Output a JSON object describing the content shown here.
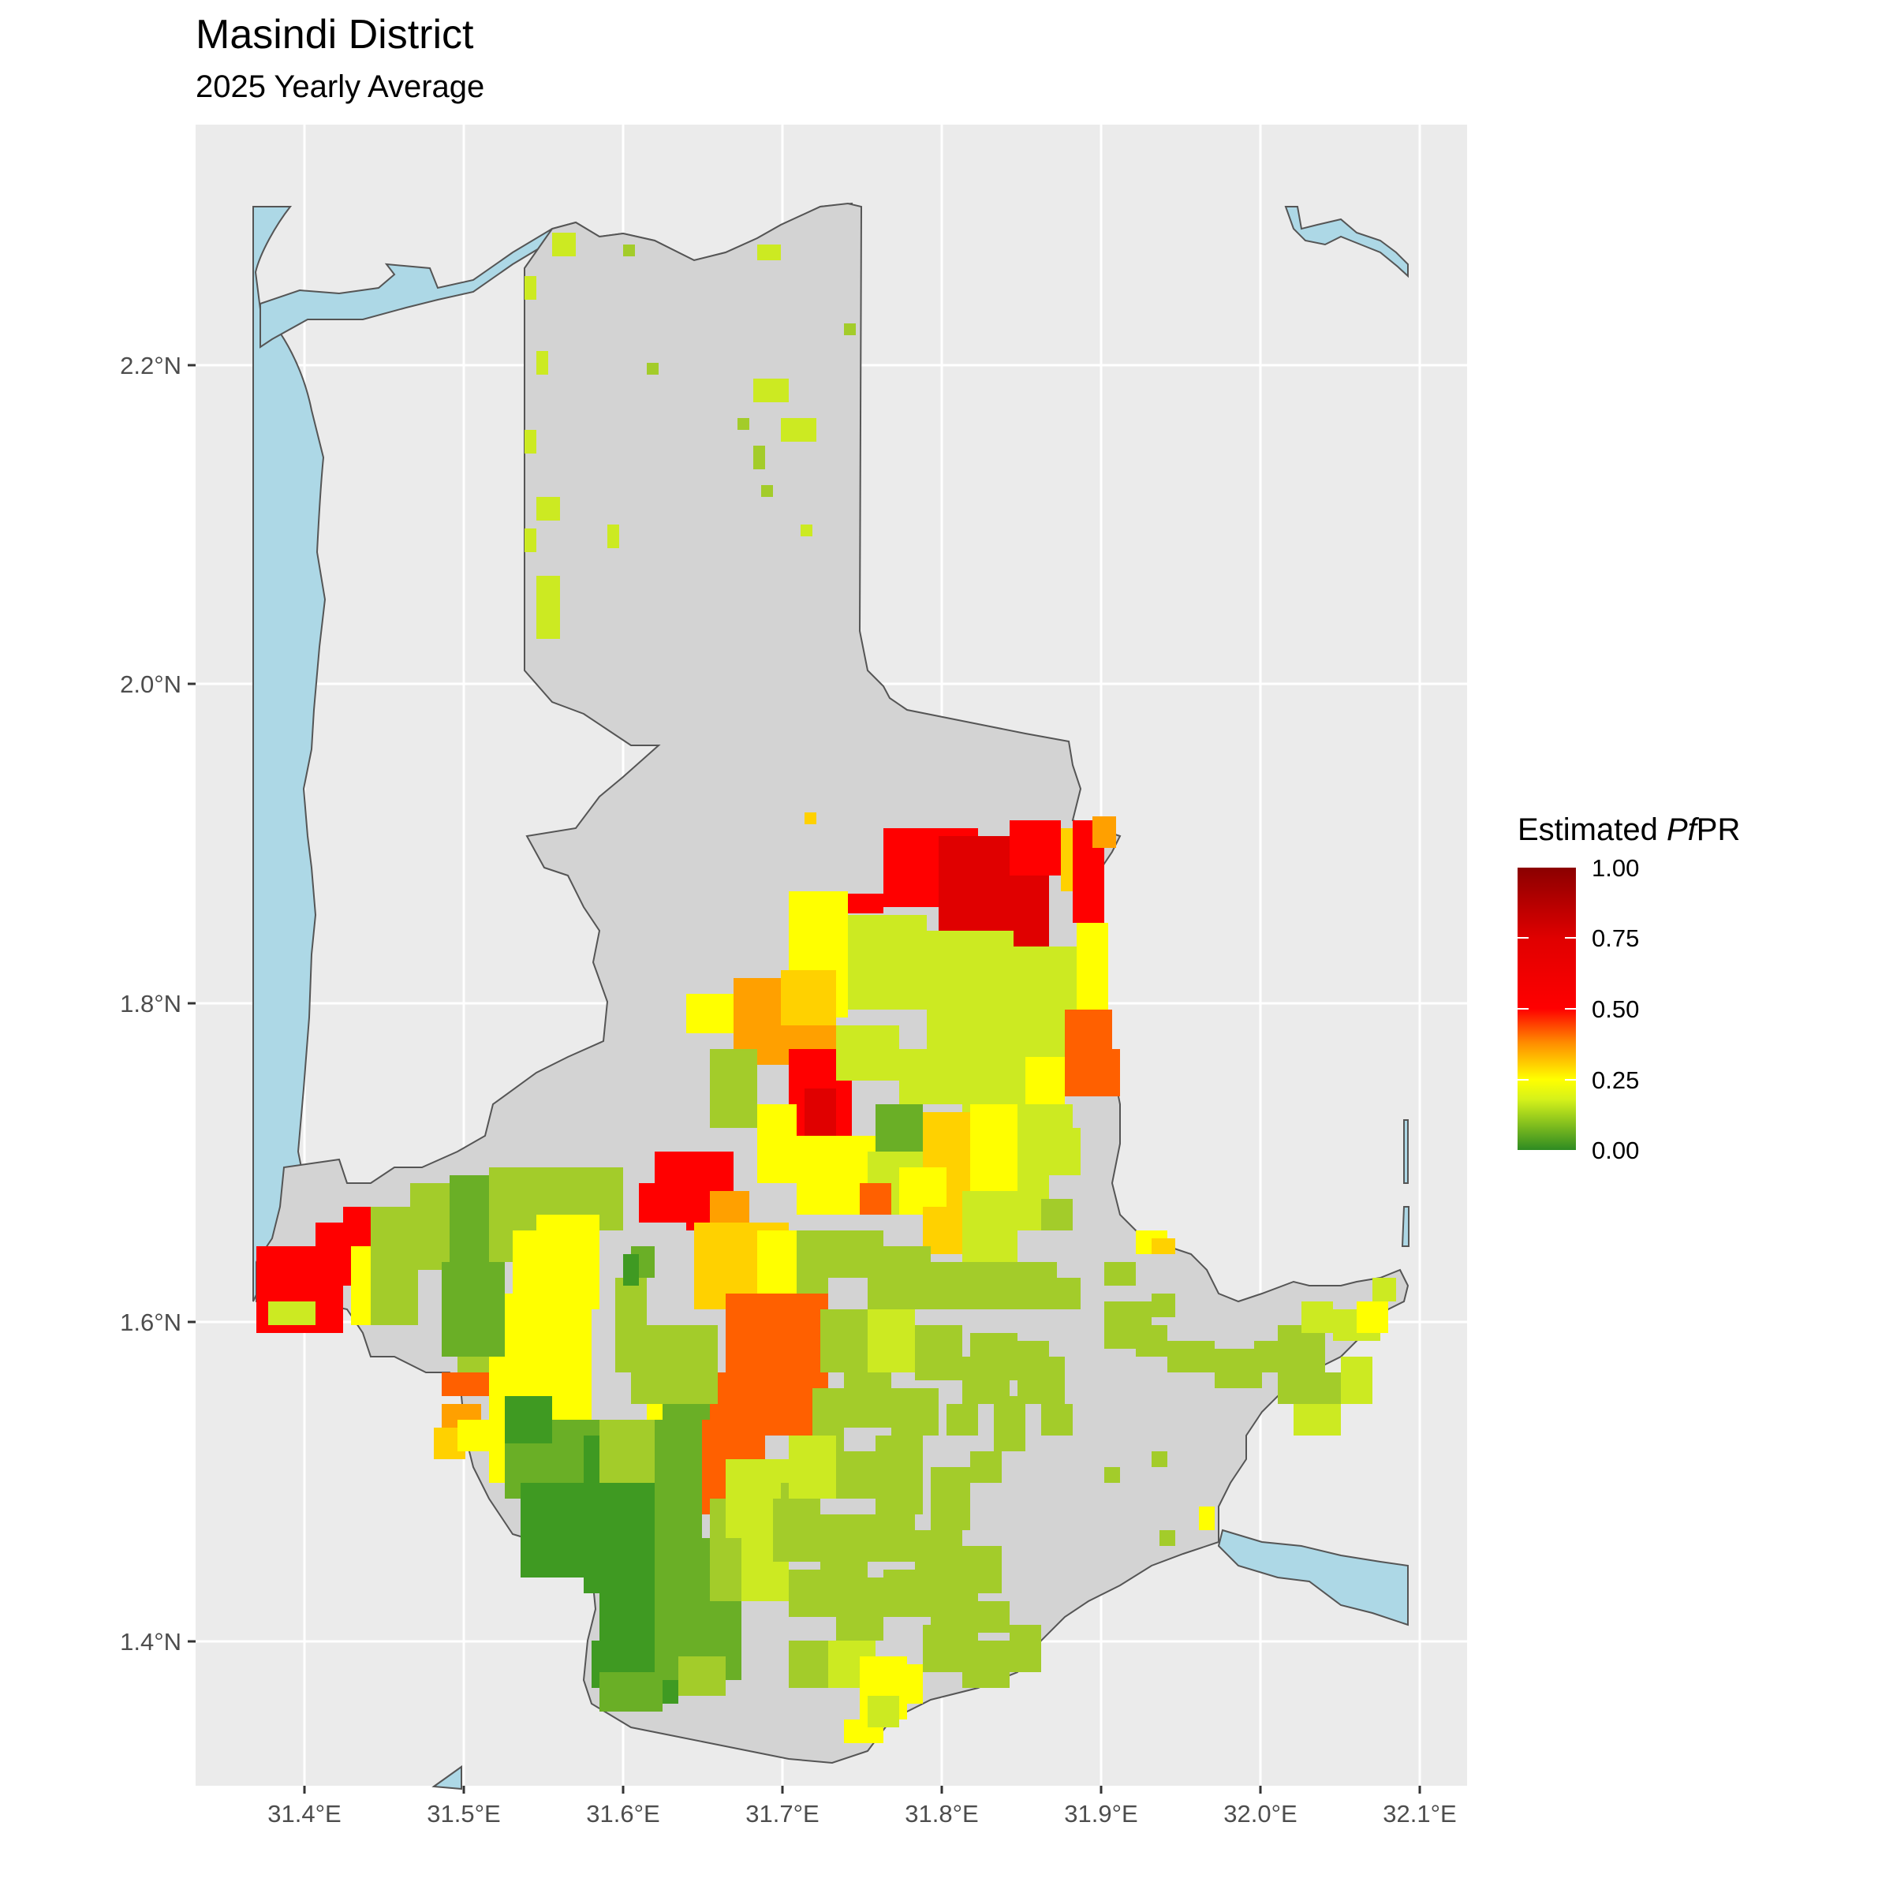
{
  "title": "Masindi District",
  "subtitle": "2025 Yearly Average",
  "legend": {
    "title_prefix": "Estimated ",
    "title_italic": "Pf",
    "title_suffix": "PR",
    "labels": [
      "1.00",
      "0.75",
      "0.50",
      "0.25",
      "0.00"
    ],
    "colors": [
      "#2e8b22",
      "#d6f21a",
      "#ffff00",
      "#ff8c00",
      "#ff0000",
      "#8b0000"
    ]
  },
  "axes": {
    "x_ticks": [
      "31.4°E",
      "31.5°E",
      "31.6°E",
      "31.7°E",
      "31.8°E",
      "31.9°E",
      "32.0°E",
      "32.1°E"
    ],
    "y_ticks": [
      "2.2°N",
      "2.0°N",
      "1.8°N",
      "1.6°N",
      "1.4°N"
    ]
  },
  "colors": {
    "panel": "#ebebeb",
    "grid": "#ffffff",
    "district": "#d3d3d3",
    "water": "#add8e6",
    "outline": "#555555"
  }
}
